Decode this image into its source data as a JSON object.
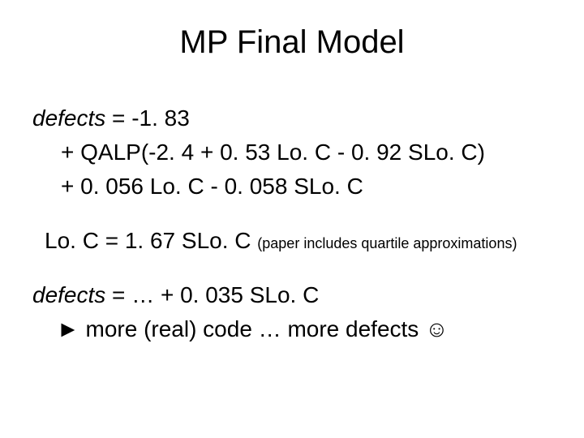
{
  "title": "MP Final Model",
  "block1": {
    "line1_prefix": "defects",
    "line1_rest": " = -1. 83",
    "line2": "+ QALP(-2. 4 + 0. 53 Lo. C - 0. 92 SLo. C)",
    "line3": "+ 0. 056 Lo. C  -  0. 058 SLo. C"
  },
  "block2": {
    "line1_main": "Lo. C = 1. 67 SLo. C ",
    "line1_note": "(paper includes quartile approximations)"
  },
  "block3": {
    "line1_prefix": "defects",
    "line1_rest": " = … + 0. 035 SLo. C",
    "line2": "► more (real) code … more defects ☺"
  },
  "colors": {
    "background": "#ffffff",
    "text": "#000000"
  },
  "typography": {
    "title_fontsize": 40,
    "body_fontsize": 28,
    "note_fontsize": 18,
    "font_family": "Arial"
  }
}
